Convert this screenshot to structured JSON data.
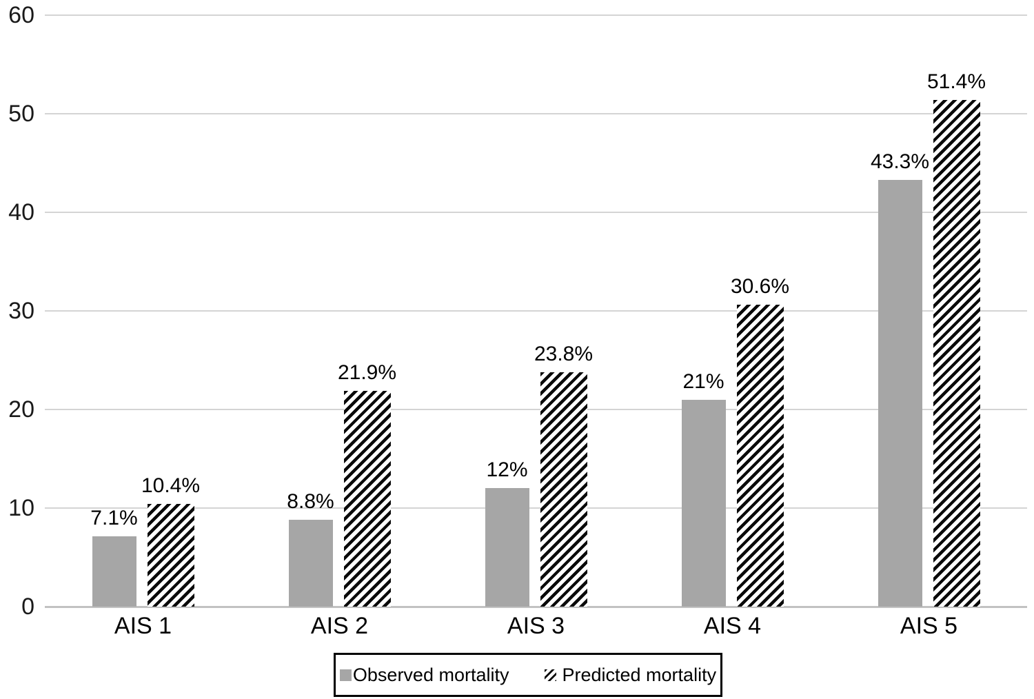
{
  "chart_data": {
    "type": "bar",
    "title": "",
    "xlabel": "",
    "ylabel": "",
    "categories": [
      "AIS 1",
      "AIS 2",
      "AIS 3",
      "AIS 4",
      "AIS 5"
    ],
    "series": [
      {
        "name": "Observed mortality",
        "style": "solid-gray",
        "values": [
          7.1,
          8.8,
          12,
          21,
          43.3
        ],
        "labels": [
          "7.1%",
          "8.8%",
          "12%",
          "21%",
          "43.3%"
        ]
      },
      {
        "name": "Predicted mortality",
        "style": "hatched",
        "values": [
          10.4,
          21.9,
          23.8,
          30.6,
          51.4
        ],
        "labels": [
          "10.4%",
          "21.9%",
          "23.8%",
          "30.6%",
          "51.4%"
        ]
      }
    ],
    "y_axis": {
      "min": 0,
      "max": 60,
      "ticks": [
        0,
        10,
        20,
        30,
        40,
        50,
        60
      ]
    },
    "grid": true,
    "legend_position": "bottom"
  },
  "colors": {
    "bar_gray": "#a6a6a6",
    "hatch_black": "#0a0a0a",
    "gridline": "#d4d4d4",
    "baseline": "#c2c2c2",
    "text": "#000000",
    "background": "#ffffff"
  }
}
